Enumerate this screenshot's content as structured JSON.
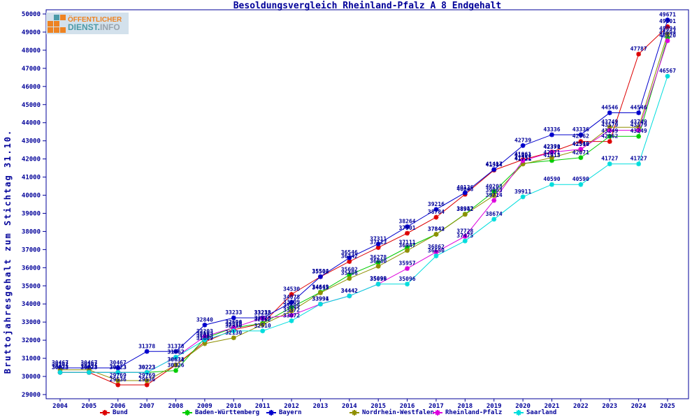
{
  "page": {
    "title": "Besoldungsvergleich Rheinland-Pfalz A 8 Endgehalt"
  },
  "logo": {
    "line1": "ÖFFENTLICHER",
    "line2a": "DIENST.",
    "line2b": "INFO"
  },
  "chart_data": {
    "type": "line",
    "title": "Besoldungsvergleich Rheinland-Pfalz A 8 Endgehalt",
    "ylabel": "Bruttojahresgehalt zum Stichtag 31.10.",
    "xlabel": "",
    "ylim": [
      29000,
      50000
    ],
    "ytick_step": 1000,
    "grid": false,
    "legend_position": "bottom",
    "point_labels": true,
    "axis_color": "#000099",
    "categories": [
      2004,
      2005,
      2006,
      2007,
      2008,
      2009,
      2010,
      2011,
      2012,
      2013,
      2014,
      2015,
      2016,
      2017,
      2018,
      2019,
      2020,
      2021,
      2022,
      2023,
      2024,
      2025
    ],
    "series": [
      {
        "name": "Bund",
        "color": "#dd0000",
        "values": [
          30223,
          30223,
          29536,
          29536,
          30631,
          31903,
          32580,
          32923,
          34530,
          35502,
          36342,
          37113,
          37901,
          38784,
          40048,
          41384,
          41961,
          42390,
          42962,
          42962,
          47787,
          49301
        ]
      },
      {
        "name": "Baden-Württemberg",
        "color": "#00cc00",
        "values": [
          30223,
          30223,
          30223,
          30223,
          30326,
          32103,
          32690,
          32928,
          33809,
          34649,
          35602,
          36278,
          37111,
          37843,
          38957,
          40203,
          41751,
          41913,
          42071,
          43249,
          43249,
          48694
        ]
      },
      {
        "name": "Bayern",
        "color": "#0000cc",
        "values": [
          30467,
          30467,
          30467,
          31378,
          31378,
          32840,
          33233,
          33233,
          34078,
          35504,
          36546,
          37311,
          38264,
          39216,
          40136,
          41417,
          42739,
          43336,
          43336,
          44546,
          44546,
          49671
        ]
      },
      {
        "name": "Nordrhein-Westfalen",
        "color": "#8f8f00",
        "values": [
          30362,
          30362,
          29769,
          29769,
          30634,
          31809,
          32130,
          32862,
          33609,
          34613,
          35408,
          36080,
          36947,
          37842,
          38942,
          39983,
          41721,
          42071,
          42518,
          43749,
          43749,
          48894
        ]
      },
      {
        "name": "Rheinland-Pfalz",
        "color": "#dd00dd",
        "values": [
          30223,
          30223,
          30223,
          30223,
          31062,
          32203,
          32696,
          33218,
          33372,
          33994,
          34442,
          35099,
          35957,
          36862,
          37728,
          39714,
          41904,
          42371,
          42540,
          43579,
          43579,
          48520
        ]
      },
      {
        "name": "Saarland",
        "color": "#00dddd",
        "values": [
          30223,
          30223,
          30223,
          30223,
          31062,
          32013,
          32510,
          32510,
          33072,
          33991,
          34442,
          35096,
          35096,
          36650,
          37475,
          38674,
          39911,
          40590,
          40590,
          41727,
          41727,
          46567
        ]
      }
    ]
  }
}
